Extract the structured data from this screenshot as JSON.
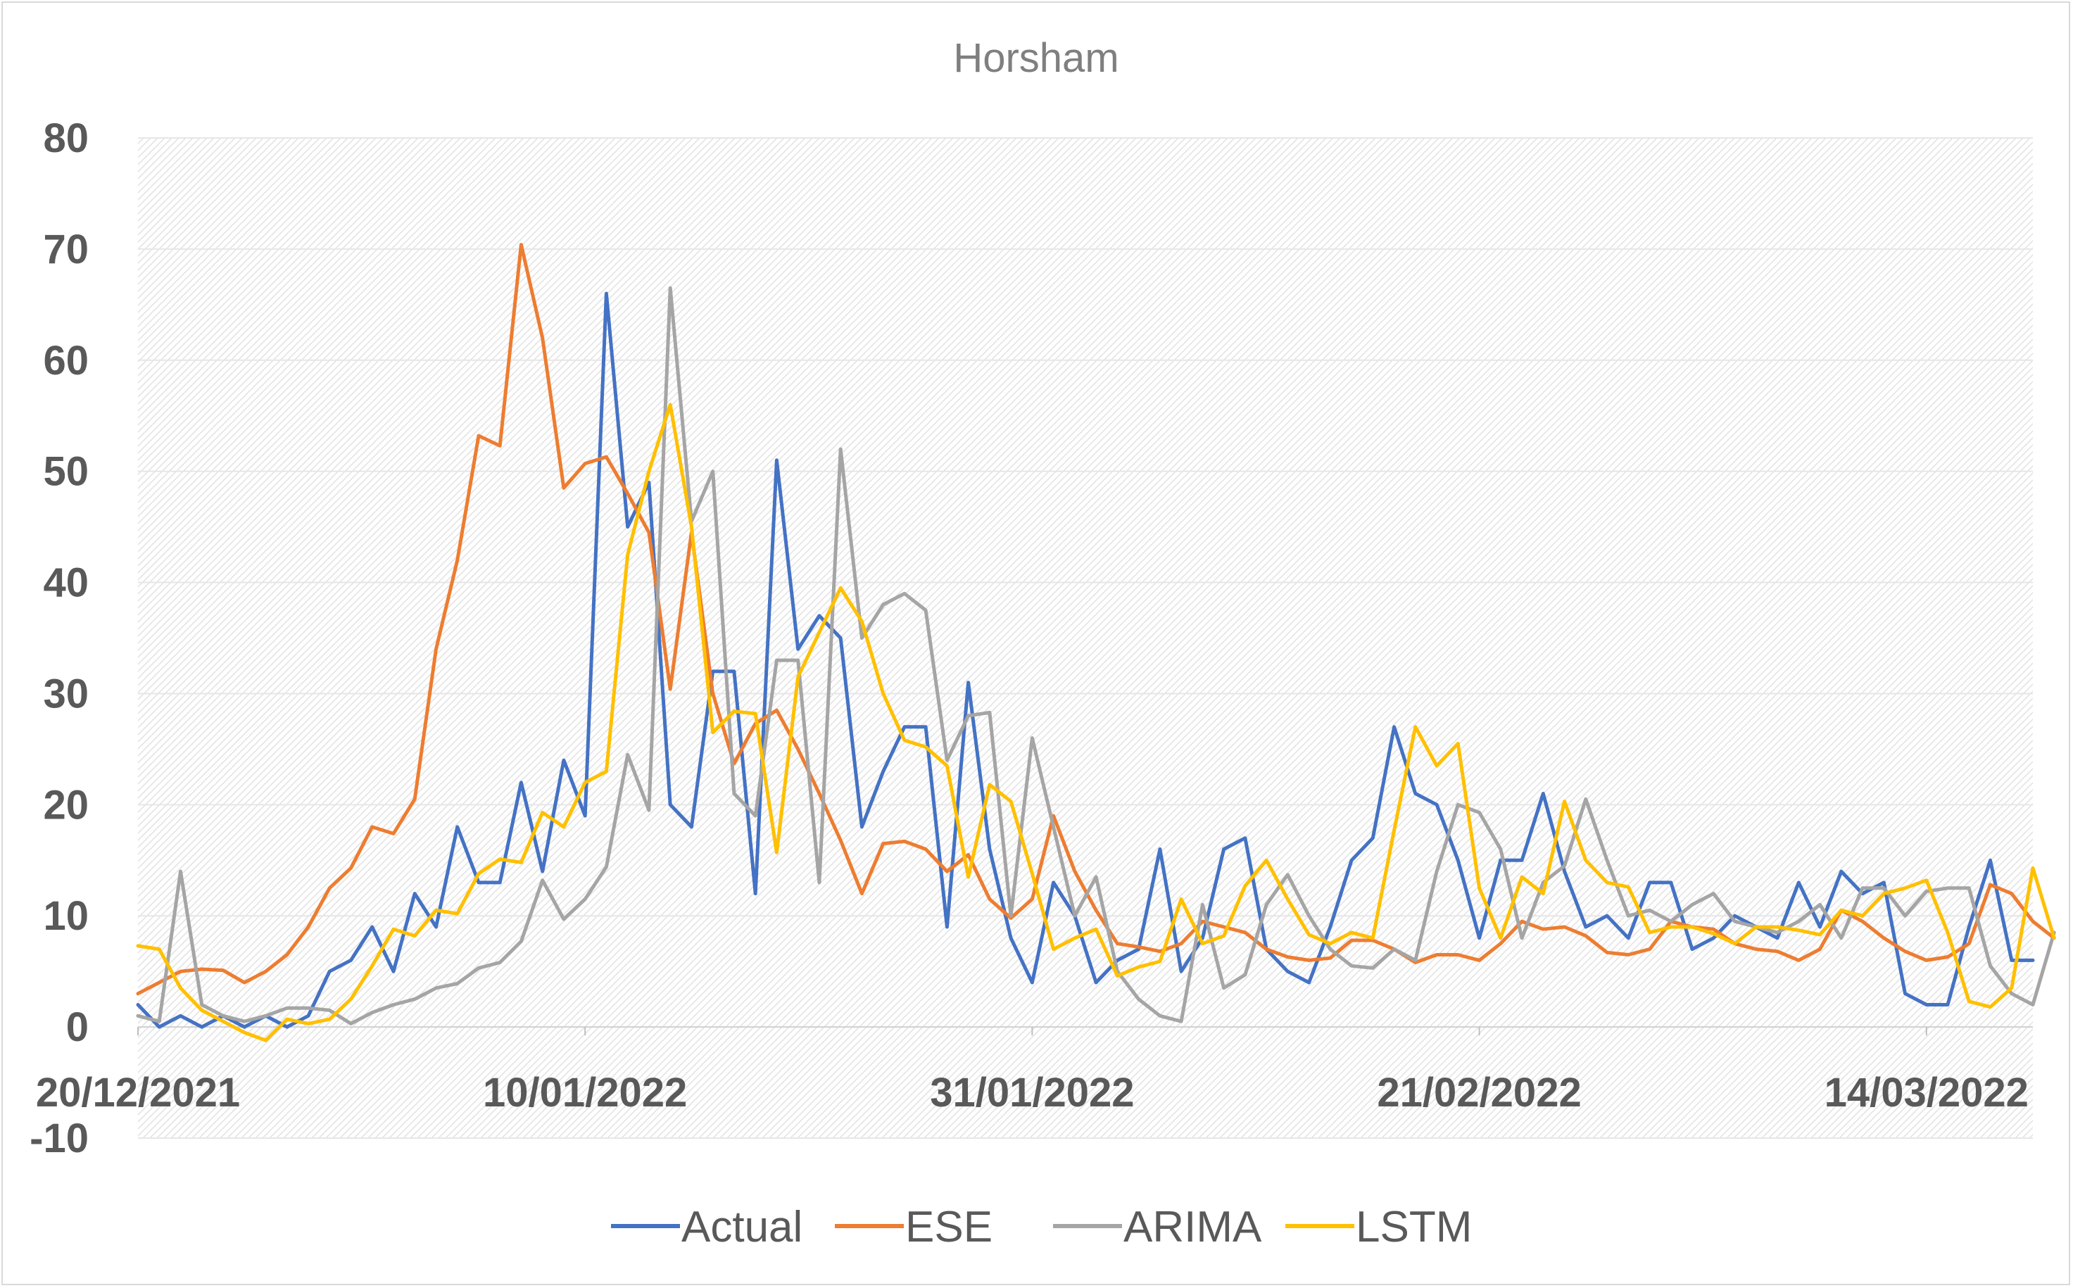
{
  "chart_data": {
    "type": "line",
    "title": "Horsham",
    "xlabel": "",
    "ylabel": "",
    "ylim": [
      -10,
      80
    ],
    "yticks": [
      "-10",
      "0",
      "10",
      "20",
      "30",
      "40",
      "50",
      "60",
      "70",
      "80"
    ],
    "xticks": [
      "20/12/2021",
      "10/01/2022",
      "31/01/2022",
      "21/02/2022",
      "14/03/2022"
    ],
    "x_start": "20/12/2021",
    "x_end": "24/03/2022",
    "grid": true,
    "legend_position": "bottom",
    "series": [
      {
        "name": "Actual",
        "color": "#4472c4",
        "values": [
          2,
          0,
          1,
          0,
          1,
          0,
          1,
          0,
          1,
          5,
          6,
          9,
          5,
          12,
          9,
          18,
          13,
          13,
          22,
          14,
          24,
          19,
          66,
          45,
          49,
          20,
          18,
          32,
          32,
          12,
          51,
          34,
          37,
          35,
          18,
          23,
          27,
          27,
          9,
          31,
          16,
          8,
          4,
          13,
          10,
          4,
          6,
          7,
          16,
          5,
          8,
          16,
          17,
          7,
          5,
          4,
          9,
          15,
          17,
          27,
          21,
          20,
          15,
          8,
          15,
          15,
          21,
          14,
          9,
          10,
          8,
          13,
          13,
          7,
          8,
          10,
          9,
          8,
          13,
          9,
          14,
          12,
          13,
          3,
          2,
          2,
          9,
          15,
          6,
          6
        ]
      },
      {
        "name": "ESE",
        "color": "#ed7d31",
        "values": [
          3,
          4,
          5,
          5.2,
          5.1,
          4,
          5,
          6.5,
          9,
          12.5,
          14.3,
          18,
          17.4,
          20.5,
          34,
          42,
          53.2,
          52.3,
          70.4,
          62,
          48.5,
          50.7,
          51.3,
          48,
          44.5,
          30.4,
          44.5,
          30,
          23.7,
          27.3,
          28.5,
          25,
          21,
          16.8,
          12,
          16.5,
          16.7,
          16,
          14,
          15.5,
          11.5,
          9.8,
          11.5,
          19,
          14,
          10.5,
          7.5,
          7.2,
          6.8,
          7.5,
          9.5,
          9,
          8.5,
          7,
          6.3,
          6,
          6.2,
          7.8,
          7.8,
          7,
          5.8,
          6.5,
          6.5,
          6,
          7.5,
          9.5,
          8.8,
          9,
          8.2,
          6.7,
          6.5,
          7,
          9.5,
          9,
          8.8,
          7.5,
          7,
          6.8,
          6,
          7,
          10.5,
          9.5,
          8,
          6.8,
          6,
          6.3,
          7.5,
          12.8,
          12,
          9.5,
          8
        ]
      },
      {
        "name": "ARIMA",
        "color": "#a5a5a5",
        "values": [
          1,
          0.5,
          14,
          2,
          1,
          0.5,
          1,
          1.7,
          1.7,
          1.5,
          0.3,
          1.3,
          2,
          2.5,
          3.5,
          3.9,
          5.3,
          5.8,
          7.7,
          13.2,
          9.7,
          11.5,
          14.4,
          24.5,
          19.5,
          66.5,
          45.5,
          50,
          21,
          19,
          33,
          33,
          13,
          52,
          35,
          38,
          39,
          37.5,
          24,
          28,
          28.3,
          10,
          26,
          18,
          10,
          13.5,
          5,
          2.5,
          1,
          0.5,
          11,
          3.5,
          4.7,
          11,
          13.7,
          10,
          7,
          5.5,
          5.3,
          7,
          6,
          14,
          20,
          19.3,
          16,
          8,
          13,
          14.5,
          20.5,
          15,
          10,
          10.5,
          9.5,
          11,
          12,
          9.5,
          9,
          8.5,
          9.5,
          11,
          8,
          12.5,
          12.5,
          10,
          12.2,
          12.5,
          12.5,
          5.5,
          3,
          2,
          8.5
        ]
      },
      {
        "name": "LSTM",
        "color": "#ffc000",
        "values": [
          7.3,
          7,
          3.5,
          1.5,
          0.5,
          -0.5,
          -1.2,
          0.7,
          0.3,
          0.7,
          2.5,
          5.5,
          8.8,
          8.2,
          10.5,
          10.2,
          13.8,
          15.1,
          14.8,
          19.3,
          18,
          22,
          23,
          42.5,
          50,
          56,
          45,
          26.5,
          28.4,
          28.2,
          15.7,
          31.5,
          35.5,
          39.5,
          36.5,
          30,
          25.8,
          25.2,
          23.5,
          13.5,
          21.8,
          20.3,
          13.8,
          7,
          8,
          8.8,
          4.6,
          5.4,
          5.9,
          11.5,
          7.5,
          8.2,
          12.7,
          15,
          11.5,
          8.3,
          7.5,
          8.5,
          8,
          17.7,
          27,
          23.5,
          25.5,
          12.5,
          8,
          13.5,
          12,
          20.3,
          15,
          13,
          12.6,
          8.5,
          9,
          9,
          8.4,
          7.5,
          9,
          9,
          8.7,
          8.3,
          10.5,
          10,
          12,
          12.5,
          13.2,
          8.5,
          2.3,
          1.8,
          3.5,
          14.3,
          8
        ]
      }
    ]
  }
}
